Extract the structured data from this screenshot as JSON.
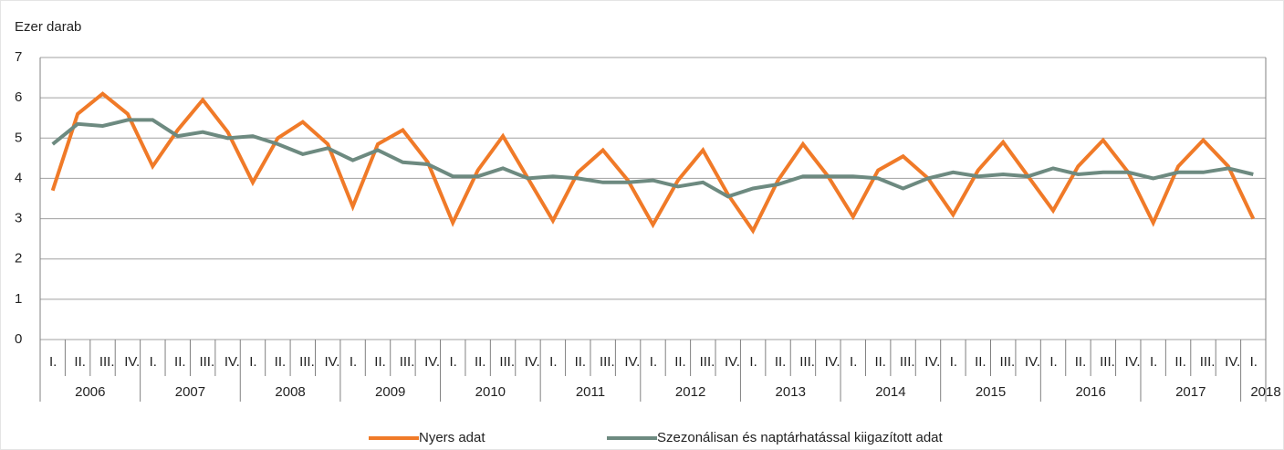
{
  "chart_data": {
    "type": "line",
    "y_axis_label": "Ezer darab",
    "categories": [
      "I.",
      "II.",
      "III.",
      "IV.",
      "I.",
      "II.",
      "III.",
      "IV.",
      "I.",
      "II.",
      "III.",
      "IV.",
      "I.",
      "II.",
      "III.",
      "IV.",
      "I.",
      "II.",
      "III.",
      "IV.",
      "I.",
      "II.",
      "III.",
      "IV.",
      "I.",
      "II.",
      "III.",
      "IV.",
      "I.",
      "II.",
      "III.",
      "IV.",
      "I.",
      "II.",
      "III.",
      "IV.",
      "I.",
      "II.",
      "III.",
      "IV.",
      "I.",
      "II.",
      "III.",
      "IV.",
      "I.",
      "II.",
      "III.",
      "IV.",
      "I."
    ],
    "years": [
      "2006",
      "2007",
      "2008",
      "2009",
      "2010",
      "2011",
      "2012",
      "2013",
      "2014",
      "2015",
      "2016",
      "2017",
      "2018"
    ],
    "series": [
      {
        "name": "Nyers adat",
        "color": "#f07a28",
        "values": [
          3.7,
          5.6,
          6.1,
          5.6,
          4.3,
          5.2,
          5.95,
          5.15,
          3.9,
          5.0,
          5.4,
          4.85,
          3.3,
          4.85,
          5.2,
          4.4,
          2.9,
          4.2,
          5.05,
          4.0,
          2.95,
          4.15,
          4.7,
          3.95,
          2.85,
          3.95,
          4.7,
          3.6,
          2.7,
          3.95,
          4.85,
          4.05,
          3.05,
          4.2,
          4.55,
          4.0,
          3.1,
          4.2,
          4.9,
          4.05,
          3.2,
          4.3,
          4.95,
          4.15,
          2.9,
          4.3,
          4.95,
          4.3,
          3.0
        ]
      },
      {
        "name": "Szezonálisan és naptárhatással kiigazított adat",
        "color": "#6d8a80",
        "values": [
          4.85,
          5.35,
          5.3,
          5.45,
          5.45,
          5.05,
          5.15,
          5.0,
          5.05,
          4.85,
          4.6,
          4.75,
          4.45,
          4.7,
          4.4,
          4.35,
          4.05,
          4.05,
          4.25,
          4.0,
          4.05,
          4.0,
          3.9,
          3.9,
          3.95,
          3.8,
          3.9,
          3.55,
          3.75,
          3.85,
          4.05,
          4.05,
          4.05,
          4.0,
          3.75,
          4.0,
          4.15,
          4.05,
          4.1,
          4.05,
          4.25,
          4.1,
          4.15,
          4.15,
          4.0,
          4.15,
          4.15,
          4.25,
          4.1
        ]
      }
    ],
    "ylim": [
      0,
      7
    ],
    "yticks": [
      0,
      1,
      2,
      3,
      4,
      5,
      6,
      7
    ],
    "grid": true
  }
}
